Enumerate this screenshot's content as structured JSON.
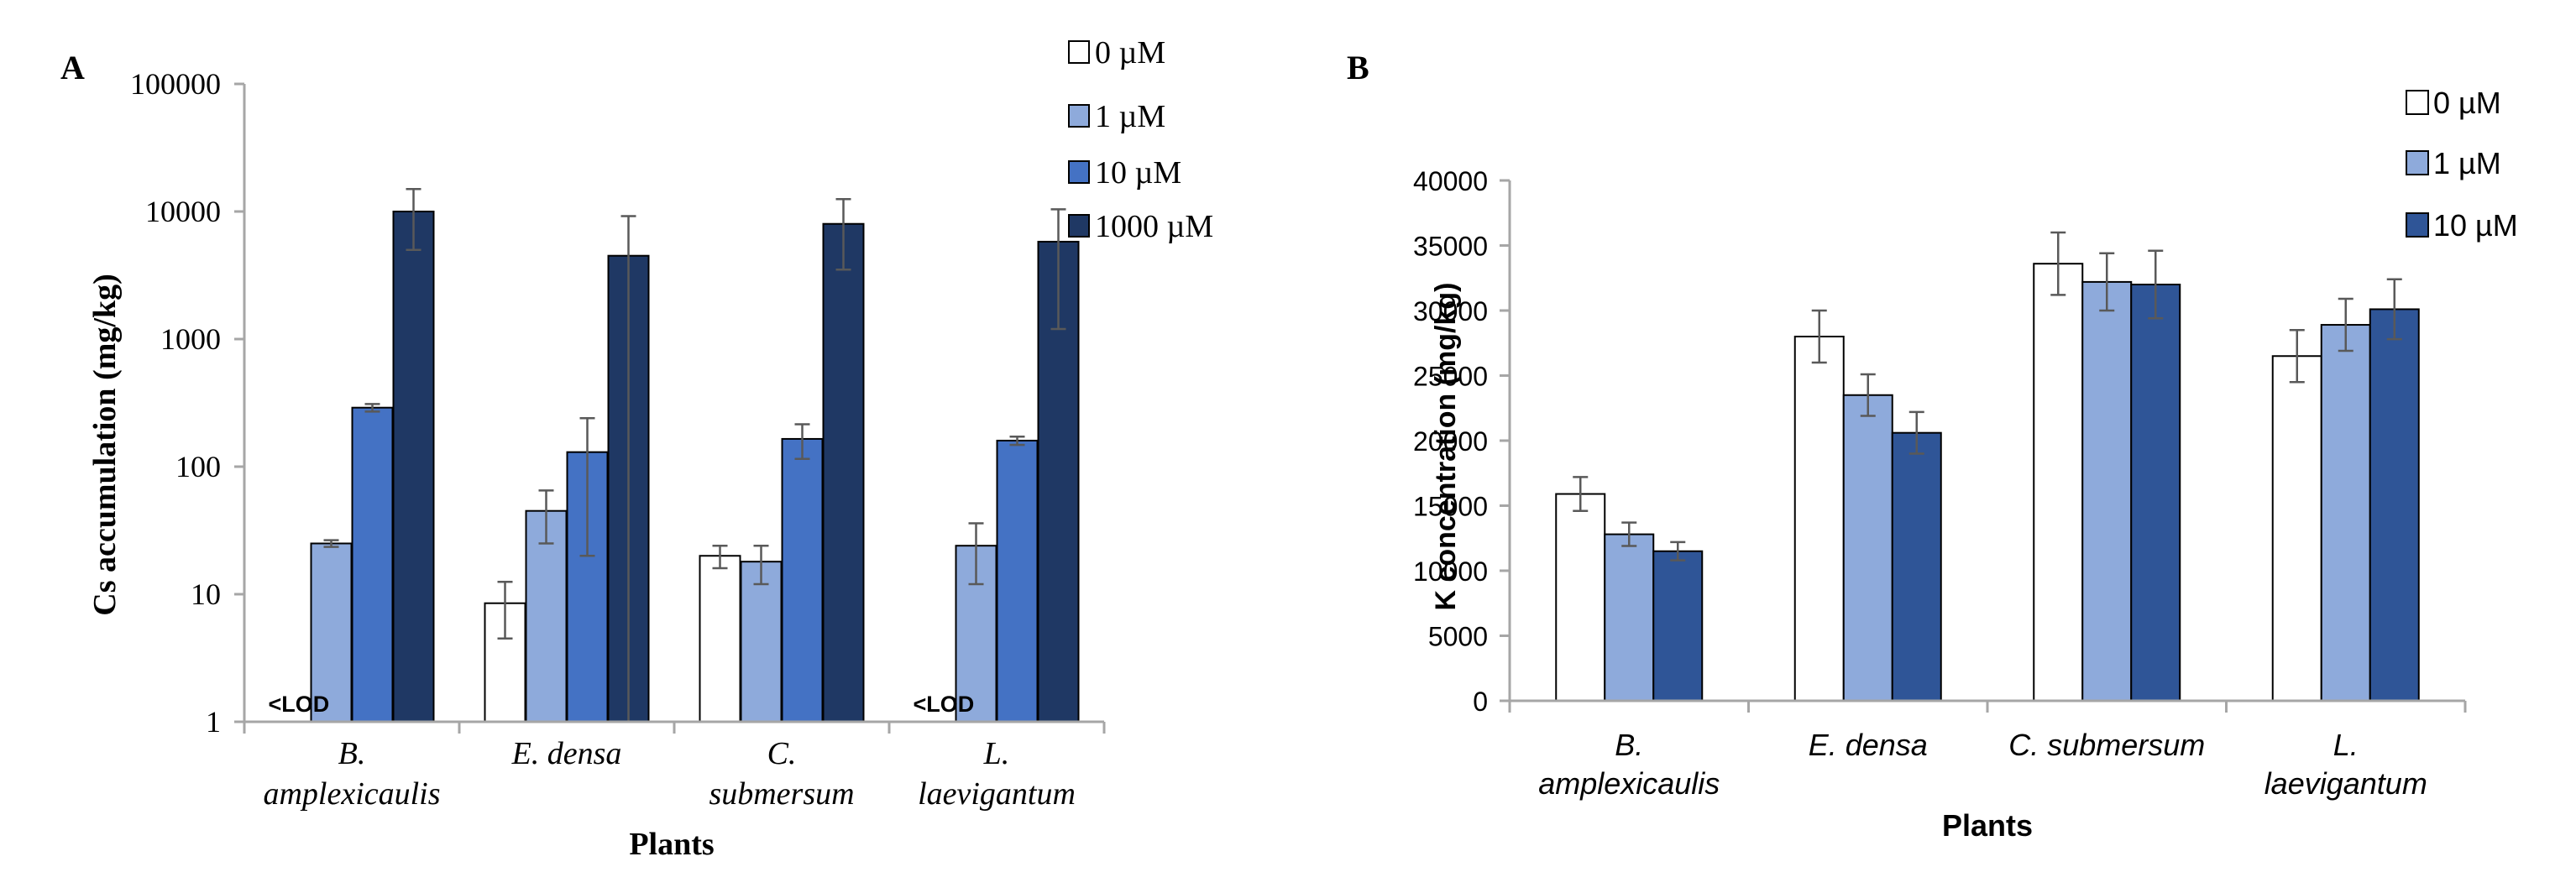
{
  "colors": {
    "s0": "#ffffff",
    "s1": "#8eaadb",
    "s2": "#4472c4",
    "s3": "#1f3864",
    "axis": "#a6a6a6",
    "err": "#595959",
    "text": "#000000"
  },
  "chart_data": [
    {
      "type": "bar",
      "panel_label": "A",
      "scale": "log",
      "ylabel": "Cs accumulation (mg/kg)",
      "xlabel": "Plants",
      "ylim": [
        1,
        100000
      ],
      "yticks": [
        "1",
        "10",
        "100",
        "1000",
        "10000",
        "100000"
      ],
      "categories": [
        [
          "B.",
          "amplexicaulis"
        ],
        [
          "E. densa"
        ],
        [
          "C.",
          "submersum"
        ],
        [
          "L.",
          "laevigantum"
        ]
      ],
      "series": [
        {
          "name": "0 µM",
          "values": [
            null,
            8.5,
            20,
            null
          ],
          "errors": [
            null,
            4,
            4,
            null
          ]
        },
        {
          "name": "1 µM",
          "values": [
            25,
            45,
            18,
            24
          ],
          "errors": [
            1.5,
            20,
            6,
            12
          ]
        },
        {
          "name": "10 µM",
          "values": [
            290,
            130,
            165,
            160
          ],
          "errors": [
            20,
            110,
            50,
            12
          ]
        },
        {
          "name": "1000 µM",
          "values": [
            10000,
            4500,
            8000,
            5800
          ],
          "errors": [
            5000,
            4700,
            4500,
            4600
          ]
        }
      ],
      "annotations": [
        {
          "category": 0,
          "series": 0,
          "text": "<LOD"
        },
        {
          "category": 3,
          "series": 0,
          "text": "<LOD"
        }
      ]
    },
    {
      "type": "bar",
      "panel_label": "B",
      "scale": "linear",
      "ylabel": "K  concentration (mg/kg)",
      "xlabel": "Plants",
      "ylim": [
        0,
        40000
      ],
      "yticks": [
        "0",
        "5000",
        "10000",
        "15000",
        "20000",
        "25000",
        "30000",
        "35000",
        "40000"
      ],
      "categories": [
        [
          "B.",
          "amplexicaulis"
        ],
        [
          "E. densa"
        ],
        [
          "C. submersum"
        ],
        [
          "L.",
          "laevigantum"
        ]
      ],
      "series": [
        {
          "name": "0 µM",
          "values": [
            15900,
            28000,
            33600,
            26500
          ],
          "errors": [
            1300,
            2000,
            2400,
            2000
          ]
        },
        {
          "name": "1 µM",
          "values": [
            12800,
            23500,
            32200,
            28900
          ],
          "errors": [
            900,
            1600,
            2200,
            2000
          ]
        },
        {
          "name": "10 µM",
          "values": [
            11500,
            20600,
            32000,
            30100
          ],
          "errors": [
            700,
            1600,
            2600,
            2300
          ]
        }
      ]
    }
  ]
}
